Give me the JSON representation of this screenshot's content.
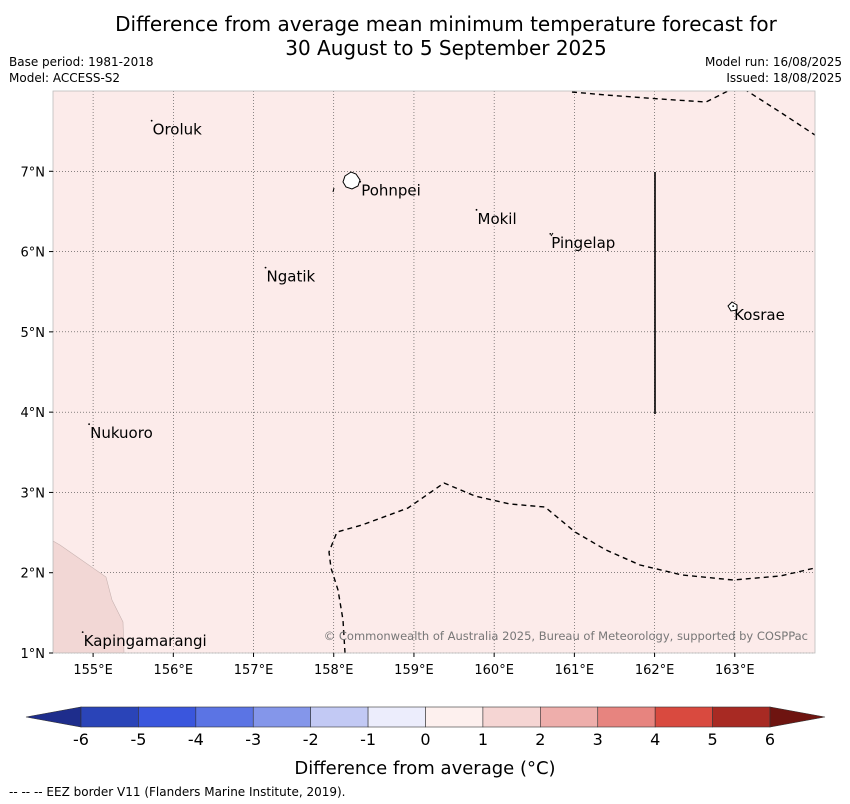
{
  "title": {
    "line1": "Difference from average mean minimum temperature forecast for",
    "line2": "30 August to 5 September 2025"
  },
  "meta": {
    "base_period": "Base period: 1981-2018",
    "model": "Model: ACCESS-S2",
    "model_run": "Model run: 16/08/2025",
    "issued": "Issued: 18/08/2025"
  },
  "map": {
    "lon_range": [
      154.5,
      164.0
    ],
    "lat_range": [
      1.0,
      8.0
    ],
    "lon_ticks": [
      "155°E",
      "156°E",
      "157°E",
      "158°E",
      "159°E",
      "160°E",
      "161°E",
      "162°E",
      "163°E"
    ],
    "lat_ticks": [
      "1°N",
      "2°N",
      "3°N",
      "4°N",
      "5°N",
      "6°N",
      "7°N"
    ],
    "background_color": "#fcebea",
    "places": [
      {
        "name": "Oroluk",
        "lon": 155.73,
        "lat": 7.63
      },
      {
        "name": "Pohnpei",
        "lon": 158.33,
        "lat": 6.87
      },
      {
        "name": "Mokil",
        "lon": 159.78,
        "lat": 6.52
      },
      {
        "name": "Pingelap",
        "lon": 160.7,
        "lat": 6.22
      },
      {
        "name": "Ngatik",
        "lon": 157.15,
        "lat": 5.8
      },
      {
        "name": "Kosrae",
        "lon": 162.98,
        "lat": 5.32
      },
      {
        "name": "Nukuoro",
        "lon": 154.95,
        "lat": 3.85
      },
      {
        "name": "Kapingamarangi",
        "lon": 154.87,
        "lat": 1.26
      }
    ],
    "copyright": "© Commonwealth of Australia 2025, Bureau of Meteorology, supported by COSPPac"
  },
  "legend": {
    "title": "Difference from average (°C)",
    "tick_labels": [
      "-6",
      "-5",
      "-4",
      "-3",
      "-2",
      "-1",
      "0",
      "1",
      "2",
      "3",
      "4",
      "5",
      "6"
    ],
    "colors": [
      "#1e2d8c",
      "#2a44b8",
      "#3a56dd",
      "#5b74e4",
      "#8496ea",
      "#c2c9f4",
      "#ecedfc",
      "#fdf0ee",
      "#f5d5d3",
      "#eeaeab",
      "#e7847f",
      "#d94a3f",
      "#a82a23",
      "#6e1410"
    ]
  },
  "footer": "--  --  -- EEZ border V11 (Flanders Marine Institute, 2019)."
}
